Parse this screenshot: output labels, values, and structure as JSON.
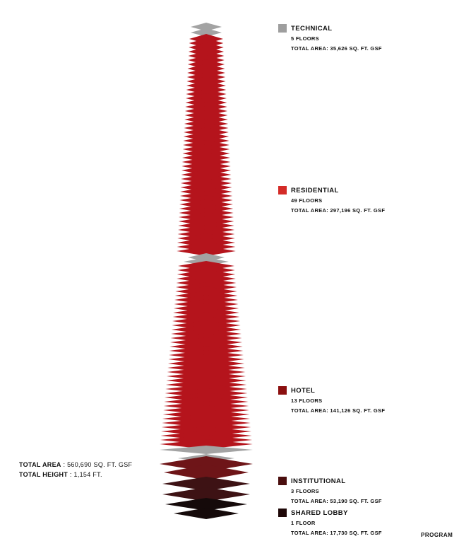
{
  "legend": [
    {
      "name": "TECHNICAL",
      "floors": "5 FLOORS",
      "area": "TOTAL AREA: 35,626 SQ. FT. GSF",
      "color": "#9e9e9e"
    },
    {
      "name": "RESIDENTIAL",
      "floors": "49 FLOORS",
      "area": "TOTAL AREA: 297,196 SQ. FT. GSF",
      "color": "#d42b27"
    },
    {
      "name": "HOTEL",
      "floors": "13 FLOORS",
      "area": "TOTAL AREA: 141,126 SQ. FT. GSF",
      "color": "#8b0f0f"
    },
    {
      "name": "INSTITUTIONAL",
      "floors": "3 FLOORS",
      "area": "TOTAL AREA: 53,190 SQ. FT. GSF",
      "color": "#4a0e0e"
    },
    {
      "name": "SHARED LOBBY",
      "floors": "1 FLOOR",
      "area": "TOTAL AREA: 17,730 SQ. FT. GSF",
      "color": "#1e0707"
    }
  ],
  "totals": {
    "area_label": "TOTAL AREA",
    "area_value": ": 560,690 SQ. FT. GSF",
    "height_label": "TOTAL HEIGHT",
    "height_value": ": 1,154 FT."
  },
  "footer_label": "PROGRAM",
  "colors": {
    "technical": "#a3a3a3",
    "residential": "#b5141c",
    "hotel": "#6e1518",
    "institutional": "#3d1214",
    "lobby": "#150a0a"
  }
}
